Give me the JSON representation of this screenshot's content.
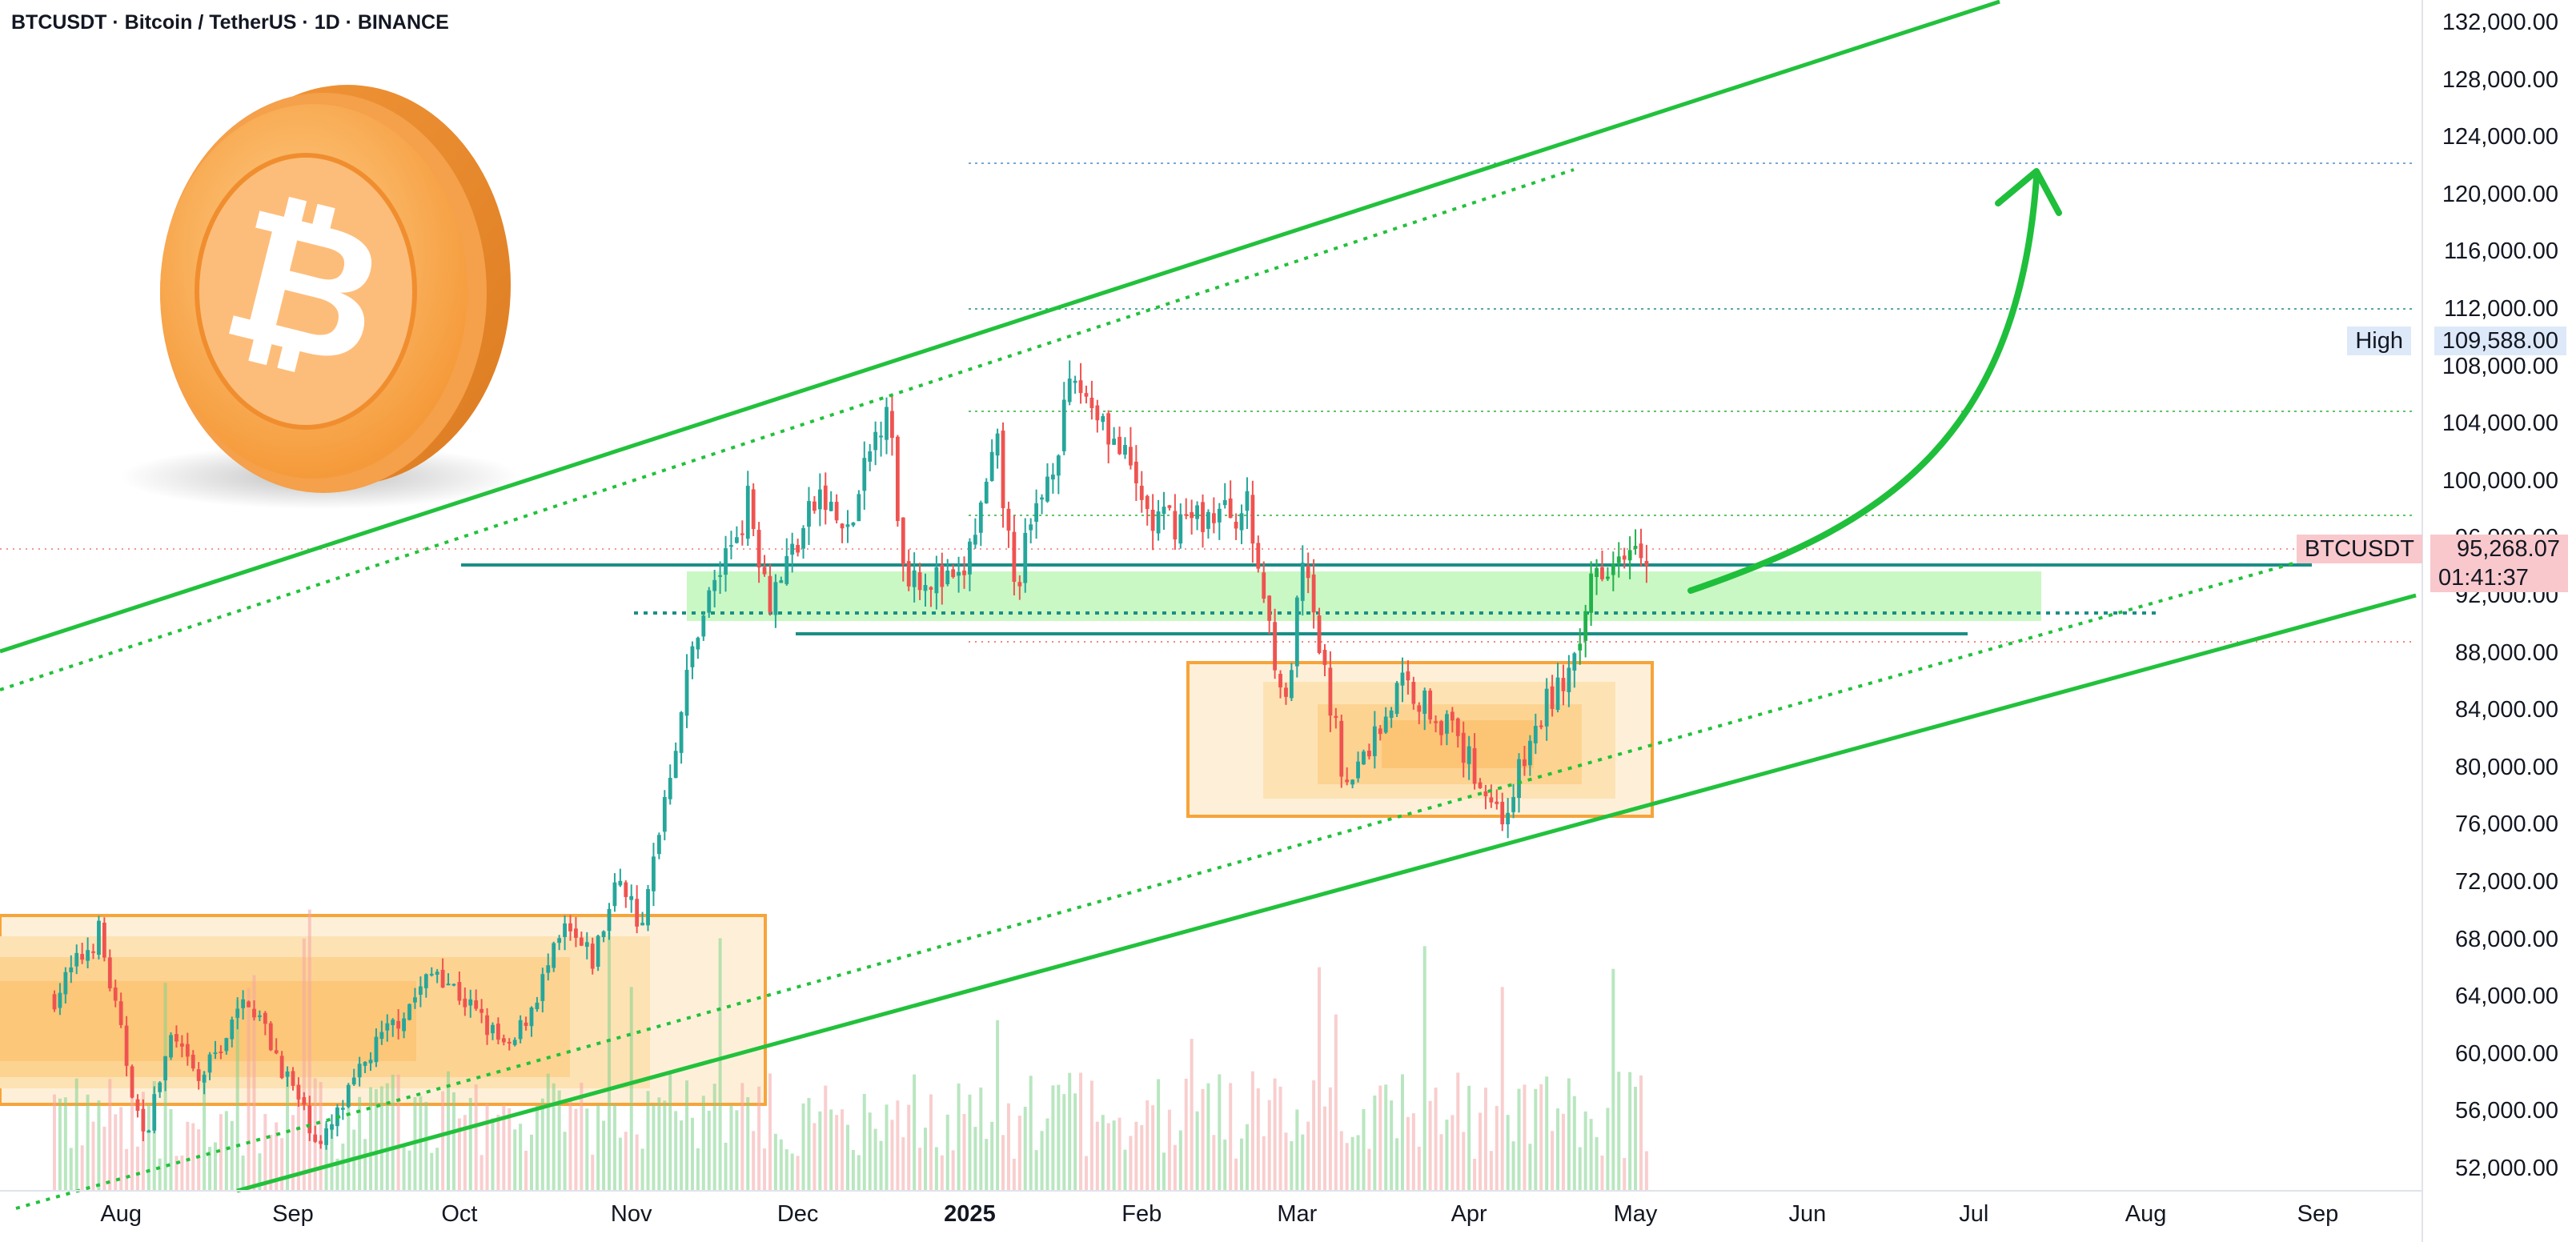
{
  "header": {
    "title": "BTCUSDT · Bitcoin / TetherUS · 1D · BINANCE"
  },
  "colors": {
    "up": "#26a69a",
    "up_bright": "#22b14c",
    "down": "#ef5350",
    "channel": "#22c13c",
    "orange": "#f7931a",
    "box_fill": "#fde3b6",
    "zone_fill": "#b8f5b0",
    "teal_line": "#1b8f86",
    "price_tag": "#f8c8cc"
  },
  "tags": {
    "high_label": "High",
    "high_value": "109,588.00",
    "symbol": "BTCUSDT",
    "price": "95,268.07",
    "countdown": "01:41:37"
  },
  "chart_data": {
    "type": "candlestick",
    "symbol": "BTCUSDT",
    "exchange": "BINANCE",
    "interval": "1D",
    "y_ticks": [
      "132,000.00",
      "128,000.00",
      "124,000.00",
      "120,000.00",
      "116,000.00",
      "112,000.00",
      "108,000.00",
      "104,000.00",
      "100,000.00",
      "96,000.00",
      "92,000.00",
      "88,000.00",
      "84,000.00",
      "80,000.00",
      "76,000.00",
      "72,000.00",
      "68,000.00",
      "64,000.00",
      "60,000.00",
      "56,000.00",
      "52,000.00"
    ],
    "ylim": [
      50000,
      133500
    ],
    "x_ticks": [
      {
        "label": "Aug",
        "bold": false
      },
      {
        "label": "Sep",
        "bold": false
      },
      {
        "label": "Oct",
        "bold": false
      },
      {
        "label": "Nov",
        "bold": false
      },
      {
        "label": "Dec",
        "bold": false
      },
      {
        "label": "2025",
        "bold": true
      },
      {
        "label": "Feb",
        "bold": false
      },
      {
        "label": "Mar",
        "bold": false
      },
      {
        "label": "Apr",
        "bold": false
      },
      {
        "label": "May",
        "bold": false
      },
      {
        "label": "Jun",
        "bold": false
      },
      {
        "label": "Jul",
        "bold": false
      },
      {
        "label": "Aug",
        "bold": false
      },
      {
        "label": "Sep",
        "bold": false
      }
    ],
    "price_path": [
      [
        "2024-07-20",
        64000
      ],
      [
        "2024-07-28",
        68500
      ],
      [
        "2024-08-05",
        54000
      ],
      [
        "2024-08-10",
        61000
      ],
      [
        "2024-08-15",
        58000
      ],
      [
        "2024-08-24",
        64000
      ],
      [
        "2024-09-01",
        57500
      ],
      [
        "2024-09-06",
        53500
      ],
      [
        "2024-09-15",
        60000
      ],
      [
        "2024-09-27",
        66000
      ],
      [
        "2024-10-10",
        60000
      ],
      [
        "2024-10-20",
        68500
      ],
      [
        "2024-10-25",
        66500
      ],
      [
        "2024-10-30",
        72500
      ],
      [
        "2024-11-03",
        68500
      ],
      [
        "2024-11-06",
        76000
      ],
      [
        "2024-11-13",
        90000
      ],
      [
        "2024-11-22",
        98500
      ],
      [
        "2024-11-26",
        92000
      ],
      [
        "2024-12-05",
        99000
      ],
      [
        "2024-12-10",
        96000
      ],
      [
        "2024-12-17",
        106000
      ],
      [
        "2024-12-20",
        94000
      ],
      [
        "2024-12-30",
        92500
      ],
      [
        "2025-01-06",
        102000
      ],
      [
        "2025-01-09",
        92500
      ],
      [
        "2025-01-20",
        107000
      ],
      [
        "2025-01-25",
        104500
      ],
      [
        "2025-02-03",
        97000
      ],
      [
        "2025-02-20",
        98000
      ],
      [
        "2025-02-27",
        84000
      ],
      [
        "2025-03-02",
        94000
      ],
      [
        "2025-03-10",
        78500
      ],
      [
        "2025-03-20",
        86000
      ],
      [
        "2025-03-28",
        83000
      ],
      [
        "2025-04-07",
        76500
      ],
      [
        "2025-04-15",
        84500
      ],
      [
        "2025-04-21",
        87500
      ],
      [
        "2025-04-23",
        93500
      ],
      [
        "2025-05-01",
        96500
      ],
      [
        "2025-05-03",
        95268.07
      ]
    ],
    "x_range": [
      "2024-07-20",
      "2025-09-20"
    ],
    "annotations": {
      "high": 109588.0,
      "last_price": 95268.07,
      "support_zone": [
        90800,
        93000
      ]
    }
  }
}
